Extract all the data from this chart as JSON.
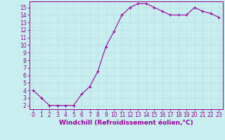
{
  "x": [
    0,
    1,
    2,
    3,
    4,
    5,
    6,
    7,
    8,
    9,
    10,
    11,
    12,
    13,
    14,
    15,
    16,
    17,
    18,
    19,
    20,
    21,
    22,
    23
  ],
  "y": [
    4,
    3,
    2,
    2,
    2,
    2,
    3.5,
    4.5,
    6.5,
    9.8,
    11.8,
    14,
    15,
    15.5,
    15.5,
    15,
    14.5,
    14,
    14,
    14,
    15,
    14.5,
    14.2,
    13.7
  ],
  "line_color": "#990099",
  "marker": "+",
  "marker_color": "#990099",
  "bg_color": "#c8eef0",
  "grid_color": "#aadddd",
  "xlabel": "Windchill (Refroidissement éolien,°C)",
  "xlim": [
    -0.5,
    23.5
  ],
  "ylim": [
    1.5,
    15.8
  ],
  "xticks": [
    0,
    1,
    2,
    3,
    4,
    5,
    6,
    7,
    8,
    9,
    10,
    11,
    12,
    13,
    14,
    15,
    16,
    17,
    18,
    19,
    20,
    21,
    22,
    23
  ],
  "yticks": [
    2,
    3,
    4,
    5,
    6,
    7,
    8,
    9,
    10,
    11,
    12,
    13,
    14,
    15
  ],
  "xlabel_fontsize": 6.5,
  "tick_fontsize": 5.5,
  "line_width": 0.8,
  "marker_size": 3.5
}
